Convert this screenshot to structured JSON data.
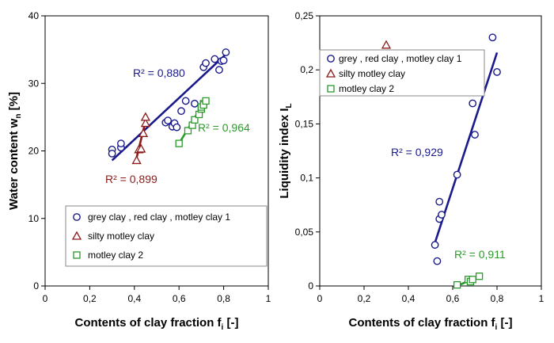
{
  "chart_data": [
    {
      "type": "scatter",
      "xlabel": "Contents of clay fraction f",
      "xlabel_sub": "i",
      "xlabel_suffix": " [-]",
      "ylabel": "Water content w",
      "ylabel_sub": "n",
      "ylabel_suffix": " [%]",
      "xlim": [
        0,
        1
      ],
      "ylim": [
        0,
        40
      ],
      "x_ticks": [
        0,
        0.2,
        0.4,
        0.6,
        0.8,
        1
      ],
      "x_tick_labels": [
        "0",
        "0,2",
        "0,4",
        "0,6",
        "0,8",
        "1"
      ],
      "y_ticks": [
        0,
        10,
        20,
        30,
        40
      ],
      "y_tick_labels": [
        "0",
        "10",
        "20",
        "30",
        "40"
      ],
      "grid": false,
      "legend_position": "lower-right",
      "series": [
        {
          "name": "grey clay , red clay , motley clay 1",
          "marker": "circle",
          "color": "#1a1a8c",
          "x": [
            0.3,
            0.3,
            0.34,
            0.34,
            0.54,
            0.55,
            0.57,
            0.58,
            0.59,
            0.61,
            0.63,
            0.67,
            0.71,
            0.72,
            0.76,
            0.78,
            0.79,
            0.8,
            0.81
          ],
          "y": [
            20.2,
            19.6,
            20.5,
            21.1,
            24.2,
            24.5,
            23.6,
            24.1,
            23.5,
            25.9,
            27.4,
            27.0,
            32.4,
            33.0,
            33.6,
            32.0,
            33.3,
            33.4,
            34.6
          ],
          "fit": {
            "x": [
              0.3,
              0.81
            ],
            "y": [
              18.6,
              34.3
            ],
            "r2_label": "R² = 0,880",
            "color": "#1a1a8c"
          }
        },
        {
          "name": "silty motley clay",
          "marker": "triangle",
          "color": "#8b1a1a",
          "x": [
            0.41,
            0.42,
            0.43,
            0.44,
            0.45,
            0.45
          ],
          "y": [
            18.6,
            20.2,
            20.3,
            22.6,
            24.1,
            25.0
          ],
          "fit": {
            "x": [
              0.41,
              0.45
            ],
            "y": [
              19.0,
              24.4
            ],
            "r2_label": "R² = 0,899",
            "color": "#8b1a1a"
          }
        },
        {
          "name": "motley clay 2",
          "marker": "square",
          "color": "#2a9a2a",
          "x": [
            0.6,
            0.64,
            0.66,
            0.67,
            0.69,
            0.7,
            0.7,
            0.71,
            0.71,
            0.72
          ],
          "y": [
            21.1,
            23.0,
            23.8,
            24.6,
            25.4,
            26.2,
            26.5,
            27.0,
            26.8,
            27.4
          ],
          "fit": {
            "x": [
              0.6,
              0.72
            ],
            "y": [
              21.1,
              27.6
            ],
            "r2_label": "R² = 0,964",
            "color": "#2a9a2a"
          }
        }
      ]
    },
    {
      "type": "scatter",
      "xlabel": "Contents of clay fraction f",
      "xlabel_sub": "i",
      "xlabel_suffix": " [-]",
      "ylabel": "Liquidity index I",
      "ylabel_sub": "L",
      "ylabel_suffix": "",
      "xlim": [
        0,
        1
      ],
      "ylim": [
        0,
        0.25
      ],
      "x_ticks": [
        0,
        0.2,
        0.4,
        0.6,
        0.8,
        1
      ],
      "x_tick_labels": [
        "0",
        "0,2",
        "0,4",
        "0,6",
        "0,8",
        "1"
      ],
      "y_ticks": [
        0,
        0.05,
        0.1,
        0.15,
        0.2,
        0.25
      ],
      "y_tick_labels": [
        "0",
        "0,05",
        "0,1",
        "0,15",
        "0,2",
        "0,25"
      ],
      "grid": false,
      "legend_position": "top-right",
      "series": [
        {
          "name": "grey , red clay , motley clay 1",
          "marker": "circle",
          "color": "#1a1a8c",
          "x": [
            0.52,
            0.53,
            0.54,
            0.54,
            0.55,
            0.62,
            0.69,
            0.7,
            0.78,
            0.8
          ],
          "y": [
            0.038,
            0.023,
            0.078,
            0.062,
            0.066,
            0.103,
            0.169,
            0.14,
            0.23,
            0.198
          ],
          "fit": {
            "x": [
              0.52,
              0.8
            ],
            "y": [
              0.04,
              0.216
            ],
            "r2_label": "R² = 0,929",
            "color": "#1a1a8c"
          }
        },
        {
          "name": "silty motley clay",
          "marker": "triangle",
          "color": "#8b1a1a",
          "x": [
            0.3
          ],
          "y": [
            0.223
          ]
        },
        {
          "name": "motley clay 2",
          "marker": "square",
          "color": "#2a9a2a",
          "x": [
            0.62,
            0.67,
            0.68,
            0.69,
            0.72
          ],
          "y": [
            0.001,
            0.006,
            0.004,
            0.006,
            0.009
          ],
          "fit": {
            "x": [
              0.62,
              0.73
            ],
            "y": [
              0.0,
              0.01
            ],
            "r2_label": "R² = 0,911",
            "color": "#2a9a2a"
          }
        }
      ]
    }
  ]
}
